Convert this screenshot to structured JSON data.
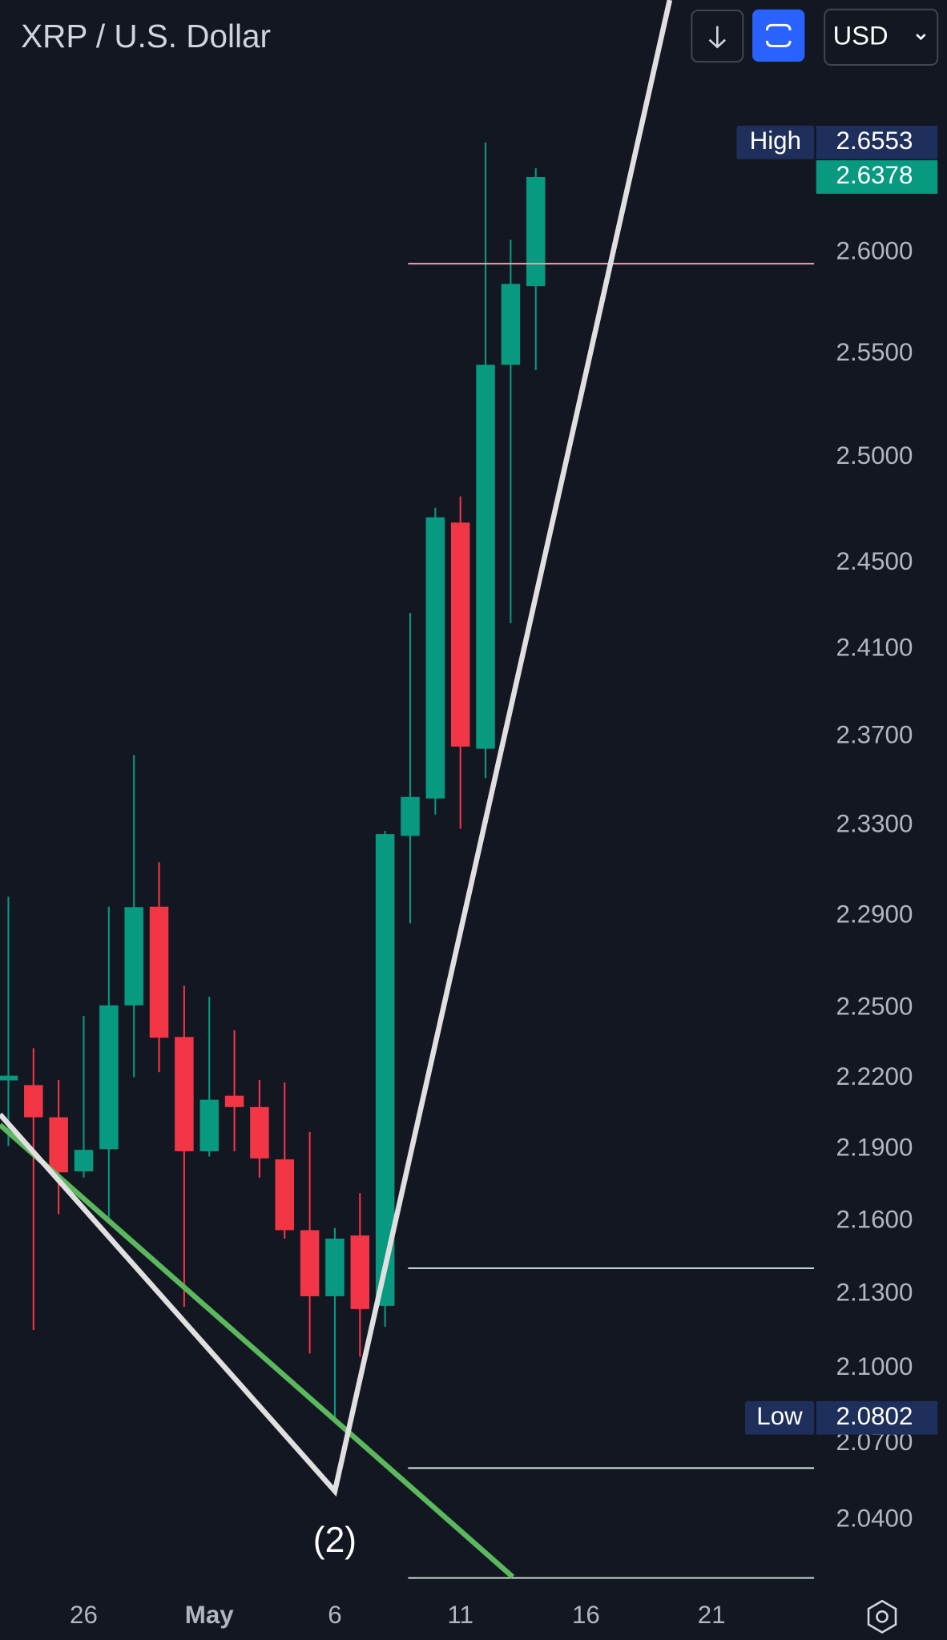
{
  "chart_data": {
    "type": "candlestick",
    "title": "XRP / U.S. Dollar",
    "currency": "USD",
    "categories": [
      null,
      null,
      null,
      "26",
      null,
      null,
      null,
      null,
      "May",
      null,
      null,
      null,
      null,
      "6",
      null,
      null,
      null,
      null,
      "11",
      null,
      null,
      null,
      null,
      "16",
      null,
      null,
      null,
      null,
      "21"
    ],
    "open": [
      2.219,
      2.217,
      2.2034,
      2.1807,
      2.19,
      2.2511,
      2.294,
      2.2375,
      2.1891,
      2.2125,
      2.2077,
      2.1857,
      2.1563,
      2.1292,
      2.1541,
      2.1253,
      2.3253,
      2.342,
      2.469,
      2.3644,
      2.5447,
      2.5833,
      null,
      null,
      null,
      null,
      null,
      null,
      null
    ],
    "high": [
      2.2984,
      2.2327,
      2.2192,
      2.2466,
      2.294,
      2.3616,
      2.3136,
      2.2595,
      2.2548,
      2.2404,
      2.2192,
      2.2181,
      2.1972,
      2.1572,
      2.1716,
      2.3275,
      2.4267,
      2.476,
      2.4814,
      2.6553,
      2.6063,
      2.6422,
      null,
      null,
      null,
      null,
      null,
      null,
      null
    ],
    "low": [
      2.1913,
      2.1155,
      2.1629,
      2.1781,
      2.1607,
      2.2203,
      2.2225,
      2.1249,
      2.1869,
      2.1891,
      2.1781,
      2.1528,
      2.106,
      2.0802,
      2.1047,
      2.1168,
      2.2867,
      2.3348,
      2.3285,
      2.3512,
      2.4219,
      2.5421,
      null,
      null,
      null,
      null,
      null,
      null,
      null
    ],
    "close": [
      2.221,
      2.2034,
      2.1803,
      2.1897,
      2.2511,
      2.2938,
      2.2372,
      2.1891,
      2.2108,
      2.2077,
      2.1861,
      2.1563,
      2.1292,
      2.1528,
      2.124,
      2.3261,
      2.3427,
      2.4715,
      2.3654,
      2.5447,
      2.5844,
      2.6378,
      null,
      null,
      null,
      null,
      null,
      null,
      null
    ],
    "up_color": "#089981",
    "down_color": "#f23645",
    "log": true,
    "ylim": [
      2.0126,
      2.7287
    ],
    "yticks": [
      {
        "value": 2.04,
        "label": "2.0400"
      },
      {
        "value": 2.07,
        "label": "2.0700"
      },
      {
        "value": 2.1,
        "label": "2.1000"
      },
      {
        "value": 2.13,
        "label": "2.1300"
      },
      {
        "value": 2.16,
        "label": "2.1600"
      },
      {
        "value": 2.19,
        "label": "2.1900"
      },
      {
        "value": 2.22,
        "label": "2.2200"
      },
      {
        "value": 2.25,
        "label": "2.2500"
      },
      {
        "value": 2.29,
        "label": "2.2900"
      },
      {
        "value": 2.33,
        "label": "2.3300"
      },
      {
        "value": 2.37,
        "label": "2.3700"
      },
      {
        "value": 2.41,
        "label": "2.4100"
      },
      {
        "value": 2.45,
        "label": "2.4500"
      },
      {
        "value": 2.5,
        "label": "2.5000"
      },
      {
        "value": 2.55,
        "label": "2.5500"
      },
      {
        "value": 2.6,
        "label": "2.6000"
      }
    ],
    "high_marker": {
      "label": "High",
      "value": 2.6553
    },
    "low_marker": {
      "label": "Low",
      "value": 2.0802
    },
    "last_price": 2.6378,
    "wave_label": "(2)"
  }
}
